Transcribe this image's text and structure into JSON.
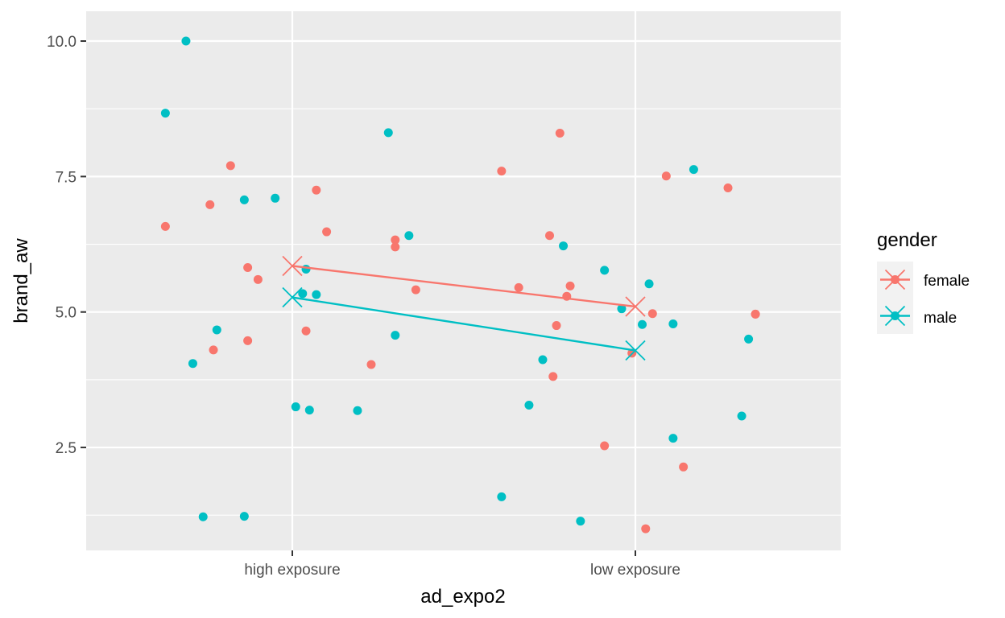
{
  "chart_data": {
    "type": "scatter",
    "xlabel": "ad_expo2",
    "ylabel": "brand_aw",
    "categories": [
      "high exposure",
      "low exposure"
    ],
    "ylim": [
      0.6,
      10.55
    ],
    "yticks": [
      2.5,
      5.0,
      7.5,
      10.0
    ],
    "ytick_labels": [
      "2.5",
      "5.0",
      "7.5",
      "10.0"
    ],
    "grid": true,
    "legend": {
      "title": "gender",
      "position": "right",
      "entries": [
        "female",
        "male"
      ]
    },
    "colors": {
      "female": "#F8766D",
      "male": "#00BFC4",
      "panel": "#EBEBEB",
      "grid": "#FFFFFF"
    },
    "series": [
      {
        "name": "female",
        "points": [
          {
            "x": 0.63,
            "y": 6.58
          },
          {
            "x": 0.76,
            "y": 6.98
          },
          {
            "x": 0.77,
            "y": 4.3
          },
          {
            "x": 0.82,
            "y": 7.7
          },
          {
            "x": 0.87,
            "y": 4.47
          },
          {
            "x": 0.87,
            "y": 5.82
          },
          {
            "x": 0.9,
            "y": 5.6
          },
          {
            "x": 1.04,
            "y": 4.65
          },
          {
            "x": 1.07,
            "y": 7.25
          },
          {
            "x": 1.1,
            "y": 6.48
          },
          {
            "x": 1.23,
            "y": 4.03
          },
          {
            "x": 1.3,
            "y": 6.33
          },
          {
            "x": 1.3,
            "y": 6.2
          },
          {
            "x": 1.36,
            "y": 5.41
          },
          {
            "x": 1.61,
            "y": 7.6
          },
          {
            "x": 1.66,
            "y": 5.45
          },
          {
            "x": 1.75,
            "y": 6.41
          },
          {
            "x": 1.76,
            "y": 3.81
          },
          {
            "x": 1.77,
            "y": 4.75
          },
          {
            "x": 1.78,
            "y": 8.3
          },
          {
            "x": 1.8,
            "y": 5.29
          },
          {
            "x": 1.81,
            "y": 5.48
          },
          {
            "x": 1.91,
            "y": 2.53
          },
          {
            "x": 1.99,
            "y": 4.24
          },
          {
            "x": 2.03,
            "y": 1.0
          },
          {
            "x": 2.05,
            "y": 4.97
          },
          {
            "x": 2.09,
            "y": 7.51
          },
          {
            "x": 2.14,
            "y": 2.14
          },
          {
            "x": 2.27,
            "y": 7.29
          },
          {
            "x": 2.35,
            "y": 4.96
          },
          {
            "x": 2.35,
            "y": 4.96
          }
        ],
        "mean": [
          {
            "x": 1,
            "y": 5.85
          },
          {
            "x": 2,
            "y": 5.1
          }
        ]
      },
      {
        "name": "male",
        "points": [
          {
            "x": 0.63,
            "y": 8.67
          },
          {
            "x": 0.69,
            "y": 10.0
          },
          {
            "x": 0.71,
            "y": 4.05
          },
          {
            "x": 0.74,
            "y": 1.22
          },
          {
            "x": 0.78,
            "y": 4.67
          },
          {
            "x": 0.86,
            "y": 1.23
          },
          {
            "x": 0.86,
            "y": 7.07
          },
          {
            "x": 0.95,
            "y": 7.1
          },
          {
            "x": 1.01,
            "y": 3.25
          },
          {
            "x": 1.03,
            "y": 5.34
          },
          {
            "x": 1.04,
            "y": 5.79
          },
          {
            "x": 1.05,
            "y": 3.19
          },
          {
            "x": 1.07,
            "y": 5.32
          },
          {
            "x": 1.19,
            "y": 3.18
          },
          {
            "x": 1.28,
            "y": 8.31
          },
          {
            "x": 1.3,
            "y": 4.57
          },
          {
            "x": 1.34,
            "y": 6.41
          },
          {
            "x": 1.61,
            "y": 1.59
          },
          {
            "x": 1.69,
            "y": 3.28
          },
          {
            "x": 1.73,
            "y": 4.12
          },
          {
            "x": 1.79,
            "y": 6.22
          },
          {
            "x": 1.84,
            "y": 1.14
          },
          {
            "x": 1.91,
            "y": 5.77
          },
          {
            "x": 1.96,
            "y": 5.06
          },
          {
            "x": 2.02,
            "y": 4.77
          },
          {
            "x": 2.04,
            "y": 5.52
          },
          {
            "x": 2.11,
            "y": 4.78
          },
          {
            "x": 2.11,
            "y": 2.67
          },
          {
            "x": 2.17,
            "y": 7.63
          },
          {
            "x": 2.31,
            "y": 3.08
          },
          {
            "x": 2.33,
            "y": 4.5
          }
        ],
        "mean": [
          {
            "x": 1,
            "y": 5.27
          },
          {
            "x": 2,
            "y": 4.29
          }
        ]
      }
    ]
  }
}
